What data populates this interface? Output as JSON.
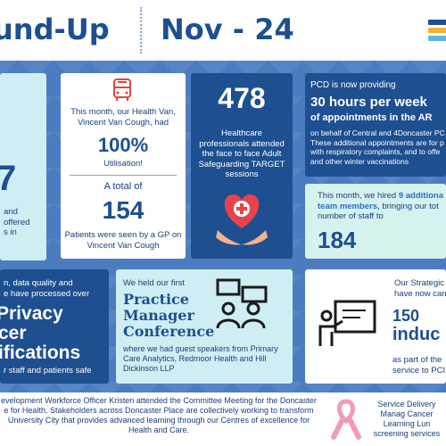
{
  "header": {
    "title_left": "und-Up",
    "title_right": "Nov - 24"
  },
  "card_left": {
    "big_number": "7",
    "line_1": "and",
    "line_2": "offered",
    "line_3": "s in"
  },
  "card_van": {
    "text": "This month, our Health Van, Vincent Van Cough, had",
    "percent": "100%",
    "utilisation": "Utilisation!",
    "total_label": "A total of",
    "total_number": "154",
    "patients_text": "Patients were seen by a GP on Vincent Van Cough"
  },
  "card_safeguarding": {
    "number": "478",
    "text": "Healthcare professionals attended the face to face Adult Safeguarding TARGET sessions"
  },
  "card_pcd": {
    "intro": "PCD is now providing",
    "headline_1": "30 hours per week",
    "headline_2": "of appointments in the AR",
    "body": "on behalf of Central and 4Doncaster PC These additional appointments are for p with respiratory complaints, and to offe and other winter vaccinations"
  },
  "card_hired": {
    "text_1": "This month, we hired",
    "text_highlight": "9 additiona",
    "text_2": "team members,",
    "text_3": "bringing our tot number of staff to",
    "number": "184"
  },
  "card_privacy": {
    "line_1": "n, data quality and",
    "line_2": "e have processed over",
    "big_1": "Privacy",
    "big_2": "cer",
    "big_3": "ifications",
    "line_end": "r staff and patients safe"
  },
  "card_conference": {
    "intro": "We held our first",
    "title_1": "Practice",
    "title_2": "Manager",
    "title_3": "Conference",
    "body": "where we had guest speakers from Primary Care Analytics, Redmoor Health and Hill Dickinson LLP"
  },
  "card_induction": {
    "line_1": "Our Strategic",
    "line_2": "have now carr",
    "number": "150",
    "word": "induc",
    "tail_1": "as part of the",
    "tail_2": "service to PCI"
  },
  "footer": {
    "left_text": "evelopment Workforce Officer Kristen attended the Committee Meeting for the Doncaster e for Health. Stakeholders across Doncaster Place are collectively working to transform University City that provides advanced learning through our Centres of excellence for Health and Care.",
    "right_text": "Service Delivery Manag Cancer Learning Lun screening services"
  },
  "colors": {
    "navy": "#1d4f91",
    "light": "#cfeef4",
    "mint": "#d6f2ef",
    "background": "#4b7cc0"
  }
}
